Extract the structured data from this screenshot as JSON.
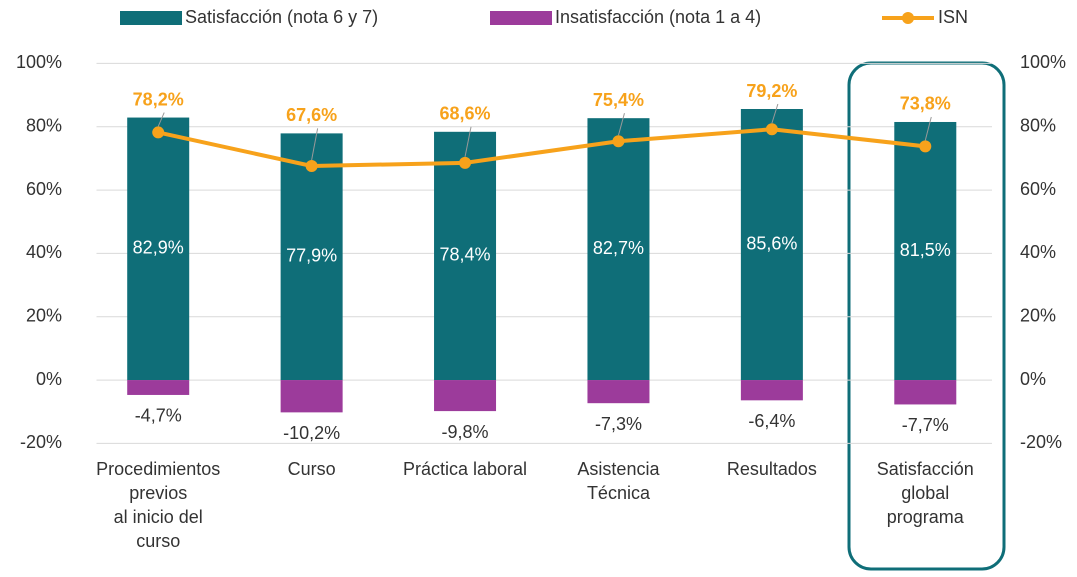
{
  "chart_data": {
    "type": "bar",
    "categories": [
      [
        "Procedimientos",
        "previos",
        "al inicio del",
        "curso"
      ],
      [
        "Curso"
      ],
      [
        "Práctica laboral"
      ],
      [
        "Asistencia",
        "Técnica"
      ],
      [
        "Resultados"
      ],
      [
        "Satisfacción",
        "global",
        "programa"
      ]
    ],
    "series": [
      {
        "name": "Satisfacción (nota 6 y 7)",
        "color": "#0f6e78",
        "values": [
          82.9,
          77.9,
          78.4,
          82.7,
          85.6,
          81.5
        ],
        "value_labels": [
          "82,9%",
          "77,9%",
          "78,4%",
          "82,7%",
          "85,6%",
          "81,5%"
        ]
      },
      {
        "name": "Insatisfacción (nota 1 a 4)",
        "color": "#9c3b9b",
        "values": [
          -4.7,
          -10.2,
          -9.8,
          -7.3,
          -6.4,
          -7.7
        ],
        "value_labels": [
          "-4,7%",
          "-10,2%",
          "-9,8%",
          "-7,3%",
          "-6,4%",
          "-7,7%"
        ]
      },
      {
        "name": "ISN",
        "type": "line",
        "color": "#f7a21b",
        "values": [
          78.2,
          67.6,
          68.6,
          75.4,
          79.2,
          73.8
        ],
        "value_labels": [
          "78,2%",
          "67,6%",
          "68,6%",
          "75,4%",
          "79,2%",
          "73,8%"
        ]
      }
    ],
    "ylim": [
      -20,
      100
    ],
    "yticks": [
      {
        "value": -20,
        "label": "-20%"
      },
      {
        "value": 0,
        "label": "0%"
      },
      {
        "value": 20,
        "label": "20%"
      },
      {
        "value": 40,
        "label": "40%"
      },
      {
        "value": 60,
        "label": "60%"
      },
      {
        "value": 80,
        "label": "80%"
      },
      {
        "value": 100,
        "label": "100%"
      }
    ],
    "y2lim": [
      -20,
      100
    ],
    "y2ticks": [
      {
        "value": -20,
        "label": "-20%"
      },
      {
        "value": 0,
        "label": "0%"
      },
      {
        "value": 20,
        "label": "20%"
      },
      {
        "value": 40,
        "label": "40%"
      },
      {
        "value": 60,
        "label": "60%"
      },
      {
        "value": 80,
        "label": "80%"
      },
      {
        "value": 100,
        "label": "100%"
      }
    ],
    "grid": true
  }
}
